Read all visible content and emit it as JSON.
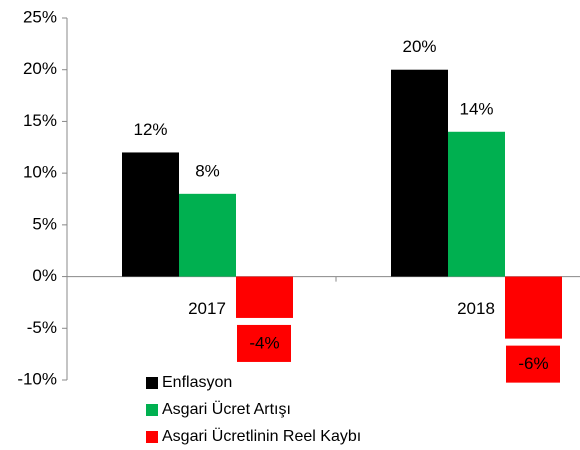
{
  "chart_data": {
    "type": "bar",
    "categories": [
      "2017",
      "2018"
    ],
    "series": [
      {
        "name": "Enflasyon",
        "color": "#000000",
        "values": [
          12,
          20
        ],
        "value_labels": [
          "12%",
          "20%"
        ]
      },
      {
        "name": "Asgari Ücret Artışı",
        "color": "#00b050",
        "values": [
          8,
          14
        ],
        "value_labels": [
          "8%",
          "14%"
        ]
      },
      {
        "name": "Asgari Ücretlinin Reel Kaybı",
        "color": "#ff0000",
        "values": [
          -4,
          -6
        ],
        "value_labels": [
          "-4%",
          "-6%"
        ]
      }
    ],
    "ylim": [
      -10,
      25
    ],
    "yticks": [
      {
        "value": -10,
        "label": "-10%"
      },
      {
        "value": -5,
        "label": "-5%"
      },
      {
        "value": 0,
        "label": "0%"
      },
      {
        "value": 5,
        "label": "5%"
      },
      {
        "value": 10,
        "label": "10%"
      },
      {
        "value": 15,
        "label": "15%"
      },
      {
        "value": 20,
        "label": "20%"
      },
      {
        "value": 25,
        "label": "25%"
      }
    ],
    "grid": false
  }
}
